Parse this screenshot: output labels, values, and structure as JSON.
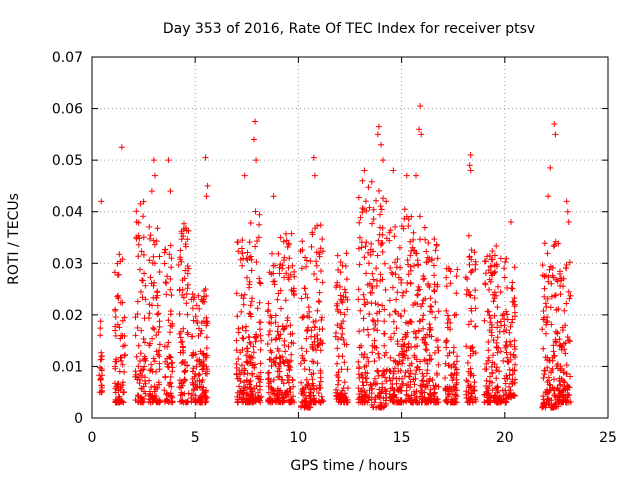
{
  "chart_data": {
    "type": "scatter",
    "title": "Day 353 of 2016, Rate Of TEC Index for receiver ptsv",
    "xlabel": "GPS time / hours",
    "ylabel": "ROTI / TECUs",
    "xlim": [
      0,
      25
    ],
    "ylim": [
      0,
      0.07
    ],
    "xticks": [
      "0",
      "5",
      "10",
      "15",
      "20",
      "25"
    ],
    "yticks": [
      "0",
      "0.01",
      "0.02",
      "0.03",
      "0.04",
      "0.05",
      "0.06",
      "0.07"
    ],
    "grid": true,
    "marker": "+",
    "color": "#ff0000",
    "clusters": [
      {
        "x": [
          0.35,
          0.5
        ],
        "y": [
          0.005,
          0.021
        ],
        "outliers": [
          [
            0.45,
            0.042
          ]
        ]
      },
      {
        "x": [
          1.1,
          1.6
        ],
        "y": [
          0.003,
          0.035
        ],
        "outliers": [
          [
            1.45,
            0.0525
          ]
        ]
      },
      {
        "x": [
          2.1,
          2.6
        ],
        "y": [
          0.003,
          0.042
        ],
        "outliers": []
      },
      {
        "x": [
          2.75,
          3.3
        ],
        "y": [
          0.003,
          0.038
        ],
        "outliers": [
          [
            3.0,
            0.05
          ],
          [
            3.05,
            0.047
          ],
          [
            2.9,
            0.044
          ]
        ]
      },
      {
        "x": [
          3.5,
          3.9
        ],
        "y": [
          0.003,
          0.035
        ],
        "outliers": [
          [
            3.7,
            0.05
          ],
          [
            3.8,
            0.044
          ]
        ]
      },
      {
        "x": [
          4.2,
          4.7
        ],
        "y": [
          0.003,
          0.038
        ],
        "outliers": []
      },
      {
        "x": [
          4.8,
          5.6
        ],
        "y": [
          0.003,
          0.025
        ],
        "outliers": [
          [
            5.5,
            0.0505
          ],
          [
            5.6,
            0.045
          ],
          [
            5.55,
            0.043
          ]
        ]
      },
      {
        "x": [
          7.0,
          7.7
        ],
        "y": [
          0.003,
          0.036
        ],
        "outliers": [
          [
            7.4,
            0.047
          ]
        ]
      },
      {
        "x": [
          7.6,
          8.2
        ],
        "y": [
          0.003,
          0.042
        ],
        "outliers": [
          [
            7.9,
            0.0575
          ],
          [
            7.85,
            0.054
          ],
          [
            7.95,
            0.05
          ]
        ]
      },
      {
        "x": [
          8.5,
          9.1
        ],
        "y": [
          0.003,
          0.032
        ],
        "outliers": [
          [
            8.8,
            0.043
          ]
        ]
      },
      {
        "x": [
          9.1,
          9.8
        ],
        "y": [
          0.003,
          0.036
        ],
        "outliers": []
      },
      {
        "x": [
          10.1,
          10.6
        ],
        "y": [
          0.002,
          0.036
        ],
        "outliers": []
      },
      {
        "x": [
          10.6,
          11.2
        ],
        "y": [
          0.003,
          0.038
        ],
        "outliers": [
          [
            10.75,
            0.0505
          ],
          [
            10.8,
            0.047
          ]
        ]
      },
      {
        "x": [
          11.8,
          12.4
        ],
        "y": [
          0.003,
          0.032
        ],
        "outliers": []
      },
      {
        "x": [
          12.9,
          13.5
        ],
        "y": [
          0.003,
          0.045
        ],
        "outliers": [
          [
            13.2,
            0.048
          ],
          [
            13.1,
            0.046
          ]
        ]
      },
      {
        "x": [
          13.5,
          14.3
        ],
        "y": [
          0.002,
          0.046
        ],
        "outliers": [
          [
            13.9,
            0.0565
          ],
          [
            14.0,
            0.053
          ],
          [
            14.1,
            0.05
          ],
          [
            13.85,
            0.055
          ]
        ]
      },
      {
        "x": [
          14.4,
          15.0
        ],
        "y": [
          0.003,
          0.038
        ],
        "outliers": [
          [
            14.6,
            0.048
          ]
        ]
      },
      {
        "x": [
          15.0,
          15.6
        ],
        "y": [
          0.003,
          0.042
        ],
        "outliers": [
          [
            15.25,
            0.047
          ]
        ]
      },
      {
        "x": [
          15.6,
          16.2
        ],
        "y": [
          0.003,
          0.04
        ],
        "outliers": [
          [
            15.9,
            0.0605
          ],
          [
            15.85,
            0.056
          ],
          [
            15.95,
            0.055
          ],
          [
            15.7,
            0.047
          ]
        ]
      },
      {
        "x": [
          16.2,
          16.8
        ],
        "y": [
          0.003,
          0.035
        ],
        "outliers": []
      },
      {
        "x": [
          17.1,
          17.7
        ],
        "y": [
          0.003,
          0.03
        ],
        "outliers": []
      },
      {
        "x": [
          18.1,
          18.6
        ],
        "y": [
          0.003,
          0.036
        ],
        "outliers": [
          [
            18.35,
            0.051
          ],
          [
            18.35,
            0.048
          ],
          [
            18.3,
            0.049
          ]
        ]
      },
      {
        "x": [
          19.0,
          19.5
        ],
        "y": [
          0.003,
          0.033
        ],
        "outliers": []
      },
      {
        "x": [
          19.5,
          20.1
        ],
        "y": [
          0.003,
          0.034
        ],
        "outliers": []
      },
      {
        "x": [
          20.1,
          20.5
        ],
        "y": [
          0.004,
          0.03
        ],
        "outliers": [
          [
            20.3,
            0.038
          ]
        ]
      },
      {
        "x": [
          21.8,
          22.6
        ],
        "y": [
          0.002,
          0.035
        ],
        "outliers": [
          [
            22.2,
            0.0485
          ],
          [
            22.4,
            0.057
          ],
          [
            22.45,
            0.055
          ],
          [
            22.1,
            0.043
          ]
        ]
      },
      {
        "x": [
          22.6,
          23.2
        ],
        "y": [
          0.003,
          0.033
        ],
        "outliers": [
          [
            23.0,
            0.042
          ],
          [
            23.05,
            0.04
          ],
          [
            23.1,
            0.038
          ]
        ]
      }
    ]
  }
}
